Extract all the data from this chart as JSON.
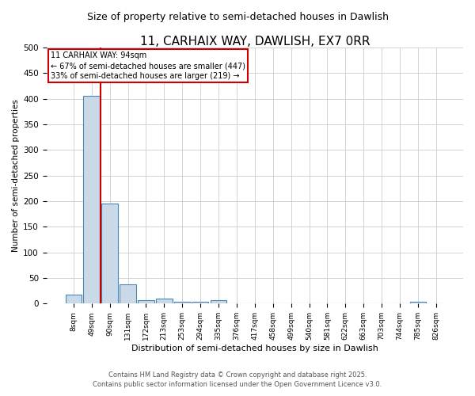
{
  "title": "11, CARHAIX WAY, DAWLISH, EX7 0RR",
  "subtitle": "Size of property relative to semi-detached houses in Dawlish",
  "xlabel": "Distribution of semi-detached houses by size in Dawlish",
  "ylabel": "Number of semi-detached properties",
  "categories": [
    "8sqm",
    "49sqm",
    "90sqm",
    "131sqm",
    "172sqm",
    "213sqm",
    "253sqm",
    "294sqm",
    "335sqm",
    "376sqm",
    "417sqm",
    "458sqm",
    "499sqm",
    "540sqm",
    "581sqm",
    "622sqm",
    "663sqm",
    "703sqm",
    "744sqm",
    "785sqm",
    "826sqm"
  ],
  "values": [
    18,
    405,
    195,
    37,
    7,
    10,
    3,
    4,
    6,
    0,
    0,
    0,
    0,
    0,
    0,
    0,
    0,
    0,
    0,
    4,
    0
  ],
  "bar_color": "#c9d9e8",
  "bar_edge_color": "#4a86b8",
  "red_line_x": 1.5,
  "annotation_title": "11 CARHAIX WAY: 94sqm",
  "annotation_line1": "← 67% of semi-detached houses are smaller (447)",
  "annotation_line2": "33% of semi-detached houses are larger (219) →",
  "annotation_color": "#cc0000",
  "ylim": [
    0,
    500
  ],
  "yticks": [
    0,
    50,
    100,
    150,
    200,
    250,
    300,
    350,
    400,
    450,
    500
  ],
  "footer_line1": "Contains HM Land Registry data © Crown copyright and database right 2025.",
  "footer_line2": "Contains public sector information licensed under the Open Government Licence v3.0.",
  "bg_color": "#ffffff",
  "grid_color": "#cccccc",
  "title_fontsize": 11,
  "subtitle_fontsize": 9
}
